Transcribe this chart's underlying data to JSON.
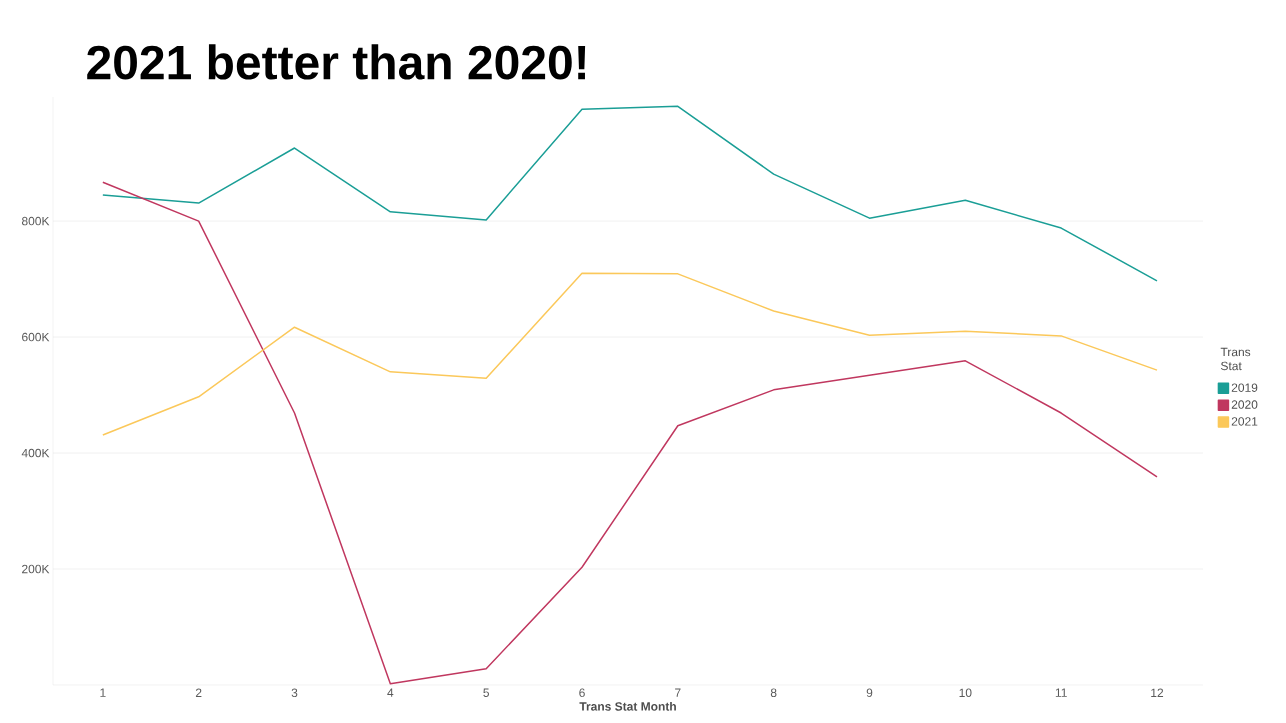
{
  "chart_data": {
    "type": "line",
    "title": "2021 better than 2020!",
    "xlabel": "Trans Stat Month",
    "legend_title": "Trans Stat",
    "legend": "right",
    "grid": "y",
    "x": [
      1,
      2,
      3,
      4,
      5,
      6,
      7,
      8,
      9,
      10,
      11,
      12
    ],
    "xlim": [
      0.48,
      12.48
    ],
    "xticks": [
      1,
      2,
      3,
      4,
      5,
      6,
      7,
      8,
      9,
      10,
      11,
      12
    ],
    "ylim": [
      0,
      1014000
    ],
    "yticks": [
      {
        "value": 200000,
        "label": "200K"
      },
      {
        "value": 400000,
        "label": "400K"
      },
      {
        "value": 600000,
        "label": "600K"
      },
      {
        "value": 800000,
        "label": "800K"
      }
    ],
    "series": [
      {
        "name": "2019",
        "color": "#1a9e96",
        "values": [
          845000,
          831000,
          926000,
          816000,
          802000,
          993000,
          998000,
          881000,
          805000,
          836000,
          788000,
          697000
        ]
      },
      {
        "name": "2020",
        "color": "#c0375f",
        "values": [
          867000,
          800000,
          469000,
          2000,
          28000,
          203000,
          447000,
          509000,
          534000,
          559000,
          469000,
          359000
        ]
      },
      {
        "name": "2021",
        "color": "#fbc85a",
        "values": [
          431000,
          497000,
          617000,
          540000,
          529000,
          710000,
          709000,
          645000,
          603000,
          610000,
          602000,
          543000
        ]
      }
    ]
  }
}
